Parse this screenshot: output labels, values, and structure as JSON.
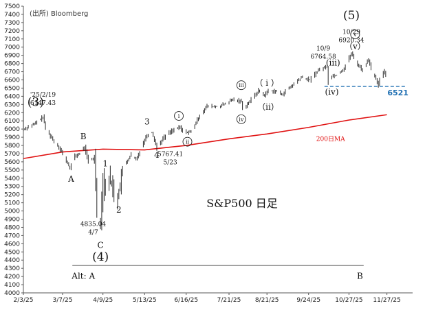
{
  "chart_data": {
    "type": "bar",
    "subtype": "ohlc-daily",
    "title": "S&P500 日足",
    "source": "(出所) Bloomberg",
    "ylim": [
      4000,
      7500
    ],
    "yticks": [
      4000,
      4100,
      4200,
      4300,
      4400,
      4500,
      4600,
      4700,
      4800,
      4900,
      5000,
      5100,
      5200,
      5300,
      5400,
      5500,
      5600,
      5700,
      5800,
      5900,
      6000,
      6100,
      6200,
      6300,
      6400,
      6500,
      6600,
      6700,
      6800,
      6900,
      7000,
      7100,
      7200,
      7300,
      7400,
      7500
    ],
    "xlim": [
      "2025-02-03",
      "2025-12-18"
    ],
    "xticks": [
      {
        "date": "2025-02-03",
        "label": "2/3/25"
      },
      {
        "date": "2025-03-07",
        "label": "3/7/25"
      },
      {
        "date": "2025-04-09",
        "label": "4/9/25"
      },
      {
        "date": "2025-05-13",
        "label": "5/13/25"
      },
      {
        "date": "2025-06-16",
        "label": "6/16/25"
      },
      {
        "date": "2025-07-21",
        "label": "7/21/25"
      },
      {
        "date": "2025-08-21",
        "label": "8/21/25"
      },
      {
        "date": "2025-09-24",
        "label": "9/24/25"
      },
      {
        "date": "2025-10-27",
        "label": "10/27/25"
      },
      {
        "date": "2025-11-27",
        "label": "11/27/25"
      }
    ],
    "price_path": [
      [
        "2025-02-03",
        5995
      ],
      [
        "2025-02-07",
        6030
      ],
      [
        "2025-02-12",
        6060
      ],
      [
        "2025-02-19",
        6147
      ],
      [
        "2025-02-21",
        6010
      ],
      [
        "2025-02-27",
        5870
      ],
      [
        "2025-03-04",
        5780
      ],
      [
        "2025-03-10",
        5610
      ],
      [
        "2025-03-13",
        5520
      ],
      [
        "2025-03-17",
        5670
      ],
      [
        "2025-03-21",
        5700
      ],
      [
        "2025-03-25",
        5780
      ],
      [
        "2025-03-28",
        5600
      ],
      [
        "2025-04-02",
        5650
      ],
      [
        "2025-04-04",
        5070
      ],
      [
        "2025-04-07",
        4835
      ],
      [
        "2025-04-09",
        5450
      ],
      [
        "2025-04-10",
        5260
      ],
      [
        "2025-04-14",
        5410
      ],
      [
        "2025-04-17",
        5280
      ],
      [
        "2025-04-21",
        5150
      ],
      [
        "2025-04-25",
        5520
      ],
      [
        "2025-05-02",
        5690
      ],
      [
        "2025-05-06",
        5620
      ],
      [
        "2025-05-12",
        5840
      ],
      [
        "2025-05-15",
        5930
      ],
      [
        "2025-05-19",
        5960
      ],
      [
        "2025-05-23",
        5767
      ],
      [
        "2025-05-28",
        5890
      ],
      [
        "2025-06-04",
        5980
      ],
      [
        "2025-06-11",
        6020
      ],
      [
        "2025-06-13",
        5970
      ],
      [
        "2025-06-20",
        5960
      ],
      [
        "2025-06-27",
        6170
      ],
      [
        "2025-07-03",
        6280
      ],
      [
        "2025-07-11",
        6270
      ],
      [
        "2025-07-17",
        6300
      ],
      [
        "2025-07-24",
        6360
      ],
      [
        "2025-07-31",
        6340
      ],
      [
        "2025-08-01",
        6240
      ],
      [
        "2025-08-07",
        6340
      ],
      [
        "2025-08-14",
        6470
      ],
      [
        "2025-08-19",
        6410
      ],
      [
        "2025-08-22",
        6470
      ],
      [
        "2025-08-29",
        6460
      ],
      [
        "2025-09-02",
        6420
      ],
      [
        "2025-09-09",
        6510
      ],
      [
        "2025-09-18",
        6630
      ],
      [
        "2025-09-25",
        6600
      ],
      [
        "2025-10-02",
        6720
      ],
      [
        "2025-10-09",
        6764
      ],
      [
        "2025-10-10",
        6550
      ],
      [
        "2025-10-13",
        6650
      ],
      [
        "2025-10-17",
        6660
      ],
      [
        "2025-10-23",
        6740
      ],
      [
        "2025-10-27",
        6870
      ],
      [
        "2025-10-29",
        6920
      ],
      [
        "2025-11-04",
        6770
      ],
      [
        "2025-11-07",
        6720
      ],
      [
        "2025-11-12",
        6850
      ],
      [
        "2025-11-14",
        6730
      ],
      [
        "2025-11-18",
        6620
      ],
      [
        "2025-11-20",
        6530
      ],
      [
        "2025-11-21",
        6600
      ],
      [
        "2025-11-25",
        6700
      ],
      [
        "2025-11-26",
        6650
      ]
    ],
    "ma_200": {
      "label": "200日MA",
      "color": "#e01010",
      "points": [
        [
          "2025-02-03",
          5640
        ],
        [
          "2025-03-07",
          5720
        ],
        [
          "2025-04-09",
          5755
        ],
        [
          "2025-05-13",
          5745
        ],
        [
          "2025-06-16",
          5800
        ],
        [
          "2025-07-21",
          5880
        ],
        [
          "2025-08-21",
          5940
        ],
        [
          "2025-09-24",
          6020
        ],
        [
          "2025-10-27",
          6110
        ],
        [
          "2025-11-27",
          6175
        ]
      ]
    },
    "support": {
      "value": 6521,
      "label": "6521",
      "color": "#1f6fb2",
      "start": "2025-10-07",
      "end": "2025-12-12"
    },
    "alt_line": {
      "value": 4335,
      "start": "2025-03-15",
      "end": "2025-11-08"
    },
    "annotations": {
      "wave3": {
        "label": "(3)",
        "date": "2025-02-13",
        "y": 6280
      },
      "peak_feb": {
        "line1": "'25/2/19",
        "line2": "6147.43",
        "date": "2025-02-19",
        "y": 6395
      },
      "A": {
        "label": "A",
        "date": "2025-03-14",
        "y": 5355
      },
      "B": {
        "label": "B",
        "date": "2025-03-24",
        "y": 5875
      },
      "wave1": {
        "label": "1",
        "date": "2025-04-11",
        "y": 5545
      },
      "wave2": {
        "label": "2",
        "date": "2025-04-22",
        "y": 4980
      },
      "C": {
        "label": "C",
        "date": "2025-04-07",
        "y": 4550
      },
      "low_apr": {
        "line1": "4835.04",
        "line2": "4/7",
        "date": "2025-04-01",
        "y": 4815
      },
      "wave4_big": {
        "label": "(4)",
        "date": "2025-04-07",
        "y": 4395
      },
      "wave3_small": {
        "label": "3",
        "date": "2025-05-15",
        "y": 6055
      },
      "wave4_small": {
        "label": "4",
        "date": "2025-05-23",
        "y": 5650
      },
      "low_may": {
        "line1": "5767.41",
        "line2": "5/23",
        "date": "2025-06-03",
        "y": 5670
      },
      "wave5_big": {
        "label": "(5)",
        "date": "2025-10-29",
        "y": 7340
      },
      "i_circ": {
        "label": "i",
        "date": "2025-06-10",
        "y": 6135
      },
      "ii_circ": {
        "label": "ii",
        "date": "2025-06-17",
        "y": 5820
      },
      "iii_circ": {
        "label": "iii",
        "date": "2025-07-31",
        "y": 6510
      },
      "iv_circ": {
        "label": "iv",
        "date": "2025-07-31",
        "y": 6095
      },
      "i_par": {
        "label": "（ i ）",
        "date": "2025-08-21",
        "y": 6530
      },
      "ii_par": {
        "label": "（ii）",
        "date": "2025-08-22",
        "y": 6235
      },
      "oct9": {
        "line1": "10/9",
        "line2": "6764.58",
        "date": "2025-10-06",
        "y": 6960
      },
      "iii_par": {
        "label": "(iii)",
        "date": "2025-10-14",
        "y": 6775
      },
      "iv_par": {
        "label": "(iv)",
        "date": "2025-10-13",
        "y": 6420
      },
      "oct29": {
        "line1": "10/29",
        "line2": "6920.34",
        "date": "2025-10-29",
        "y": 7160
      },
      "v_circ": {
        "label": "v",
        "date": "2025-11-01",
        "y": 7130
      },
      "v_par": {
        "label": "（v）",
        "date": "2025-11-01",
        "y": 6975
      },
      "alt": {
        "label": "Alt: A",
        "date": "2025-03-24",
        "y": 4170
      },
      "B_alt": {
        "label": "B",
        "date": "2025-11-05",
        "y": 4170
      }
    }
  }
}
